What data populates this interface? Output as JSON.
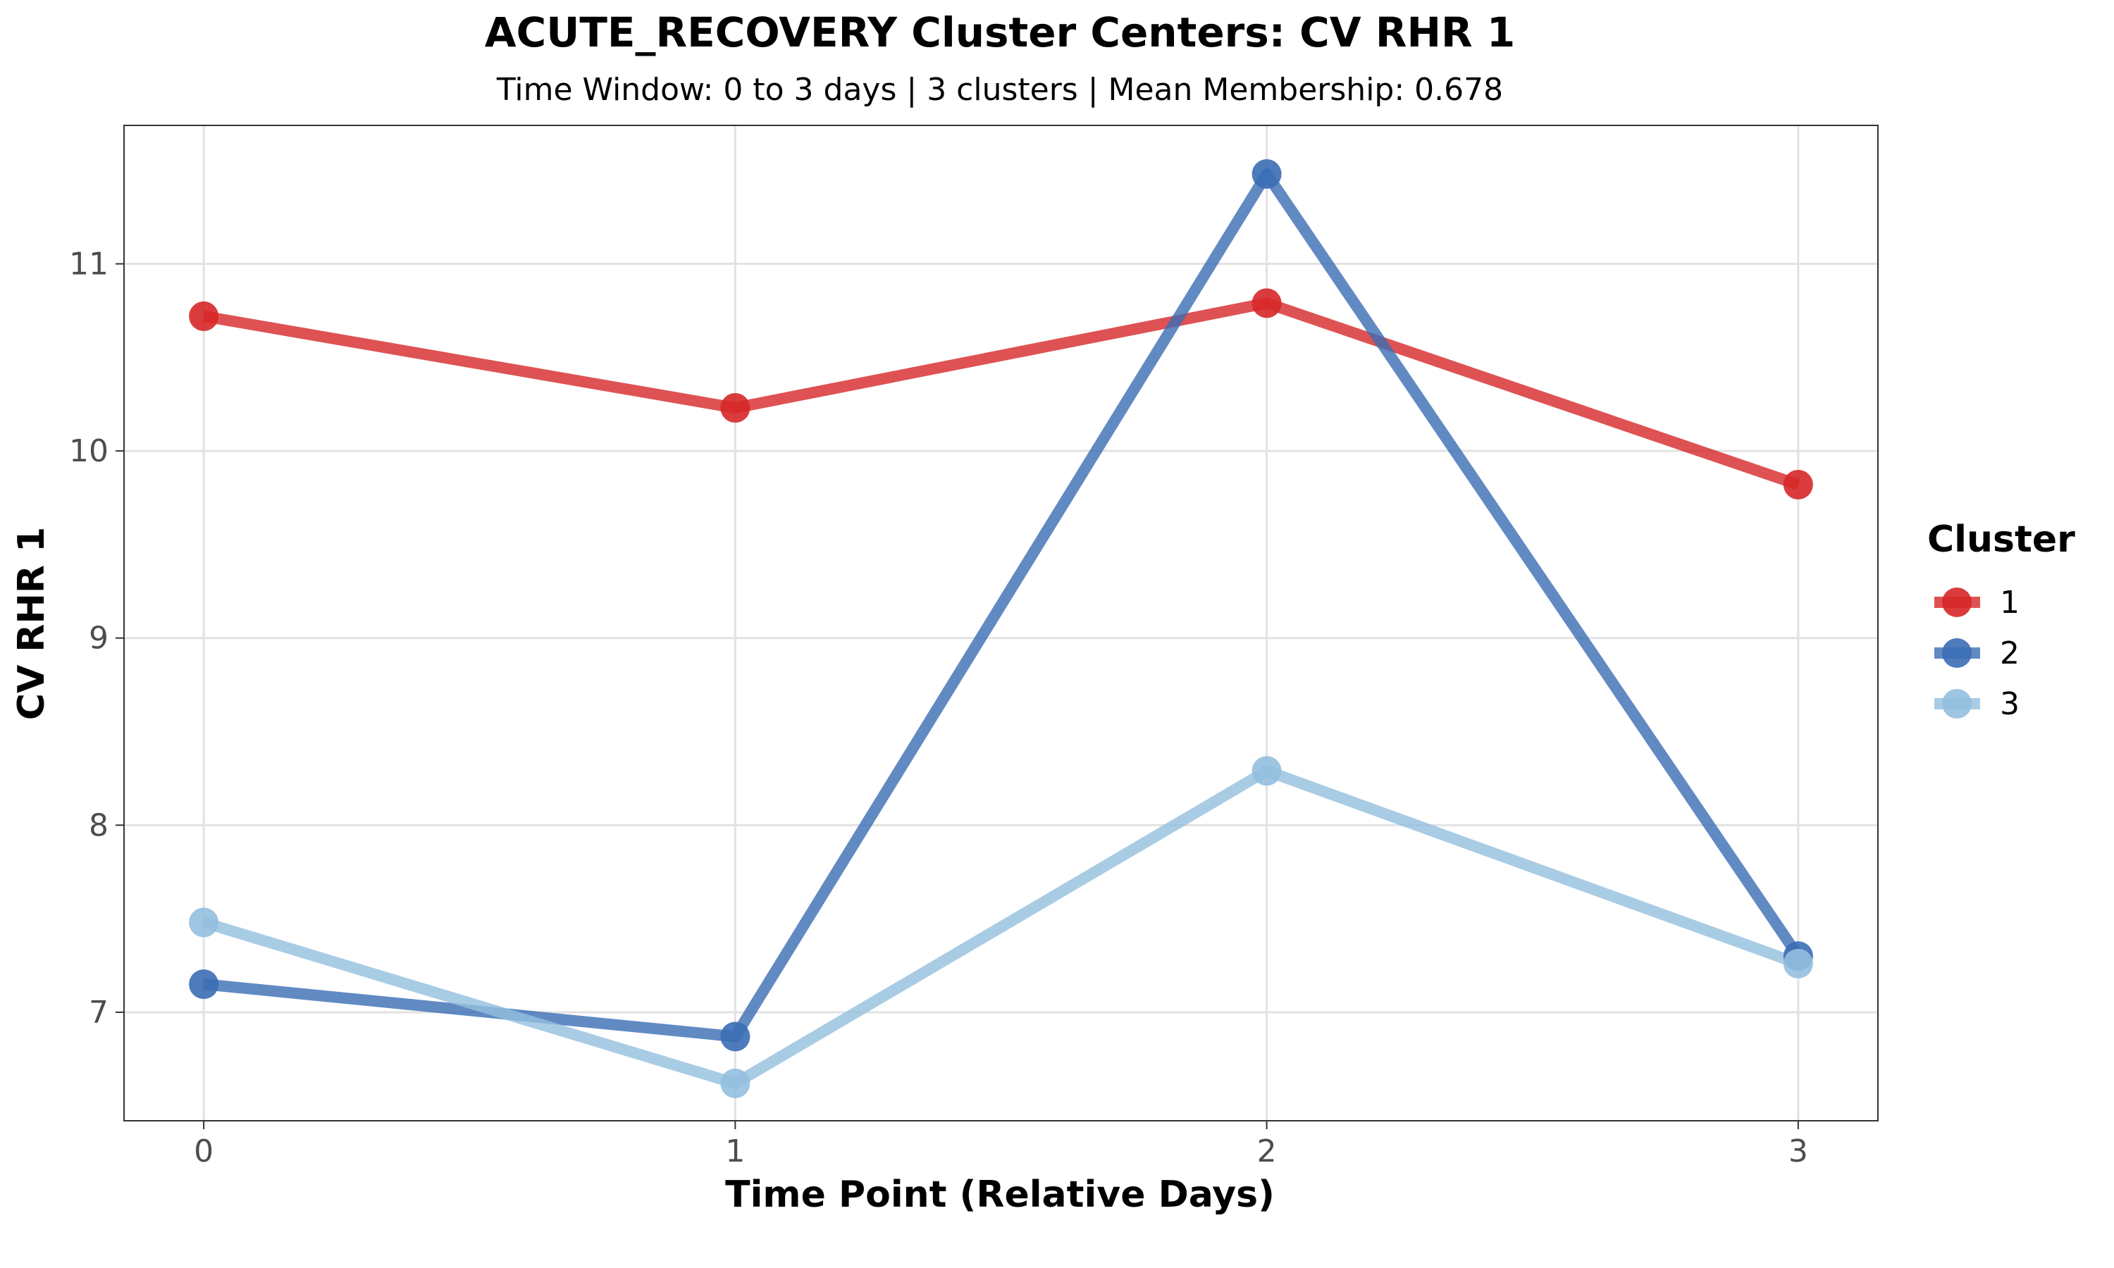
{
  "chart_data": {
    "type": "line",
    "title": "ACUTE_RECOVERY Cluster Centers: CV RHR 1",
    "subtitle": "Time Window: 0 to 3 days | 3 clusters | Mean Membership: 0.678",
    "xlabel": "Time Point (Relative Days)",
    "ylabel": "CV RHR 1",
    "x": [
      0,
      1,
      2,
      3
    ],
    "x_ticks": [
      "0",
      "1",
      "2",
      "3"
    ],
    "xlim": [
      -0.15,
      3.15
    ],
    "y_ticks": [
      "7",
      "8",
      "9",
      "10",
      "11"
    ],
    "ylim": [
      6.42,
      11.74
    ],
    "grid": true,
    "legend_title": "Cluster",
    "legend_position": "right",
    "series": [
      {
        "name": "1",
        "color": "#d62728",
        "values": [
          10.72,
          10.23,
          10.79,
          9.82
        ]
      },
      {
        "name": "2",
        "color": "#3a6db4",
        "values": [
          7.15,
          6.87,
          11.48,
          7.3
        ]
      },
      {
        "name": "3",
        "color": "#93bfdf",
        "values": [
          7.48,
          6.62,
          8.29,
          7.26
        ]
      }
    ]
  }
}
